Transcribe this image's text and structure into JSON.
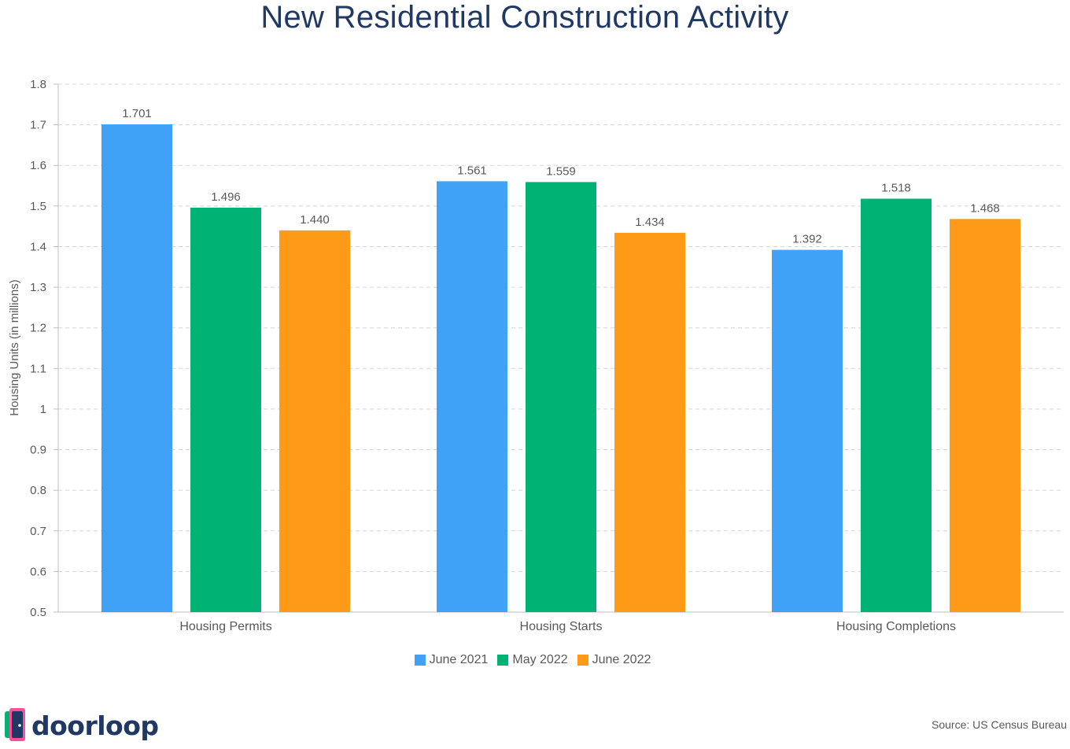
{
  "chart_data": {
    "type": "bar",
    "title": "New Residential Construction Activity",
    "ylabel": "Housing Units (in millions)",
    "xlabel": "",
    "ylim": [
      0.5,
      1.8
    ],
    "yticks": [
      "0.5",
      "0.6",
      "0.7",
      "0.8",
      "0.9",
      "1",
      "1.1",
      "1.2",
      "1.3",
      "1.4",
      "1.5",
      "1.6",
      "1.7",
      "1.8"
    ],
    "categories": [
      "Housing Permits",
      "Housing Starts",
      "Housing Completions"
    ],
    "series": [
      {
        "name": "June 2021",
        "color": "#3fa2f7",
        "values": [
          1.701,
          1.561,
          1.392
        ],
        "labels": [
          "1.701",
          "1.561",
          "1.392"
        ]
      },
      {
        "name": "May 2022",
        "color": "#00b274",
        "values": [
          1.496,
          1.559,
          1.518
        ],
        "labels": [
          "1.496",
          "1.559",
          "1.518"
        ]
      },
      {
        "name": "June 2022",
        "color": "#ff9a16",
        "values": [
          1.44,
          1.434,
          1.468
        ],
        "labels": [
          "1.440",
          "1.434",
          "1.468"
        ]
      }
    ],
    "grid": true,
    "legend_position": "bottom-center"
  },
  "brand": {
    "name": "doorloop",
    "icon": "door-icon"
  },
  "footer": {
    "source": "Source: US Census Bureau"
  }
}
